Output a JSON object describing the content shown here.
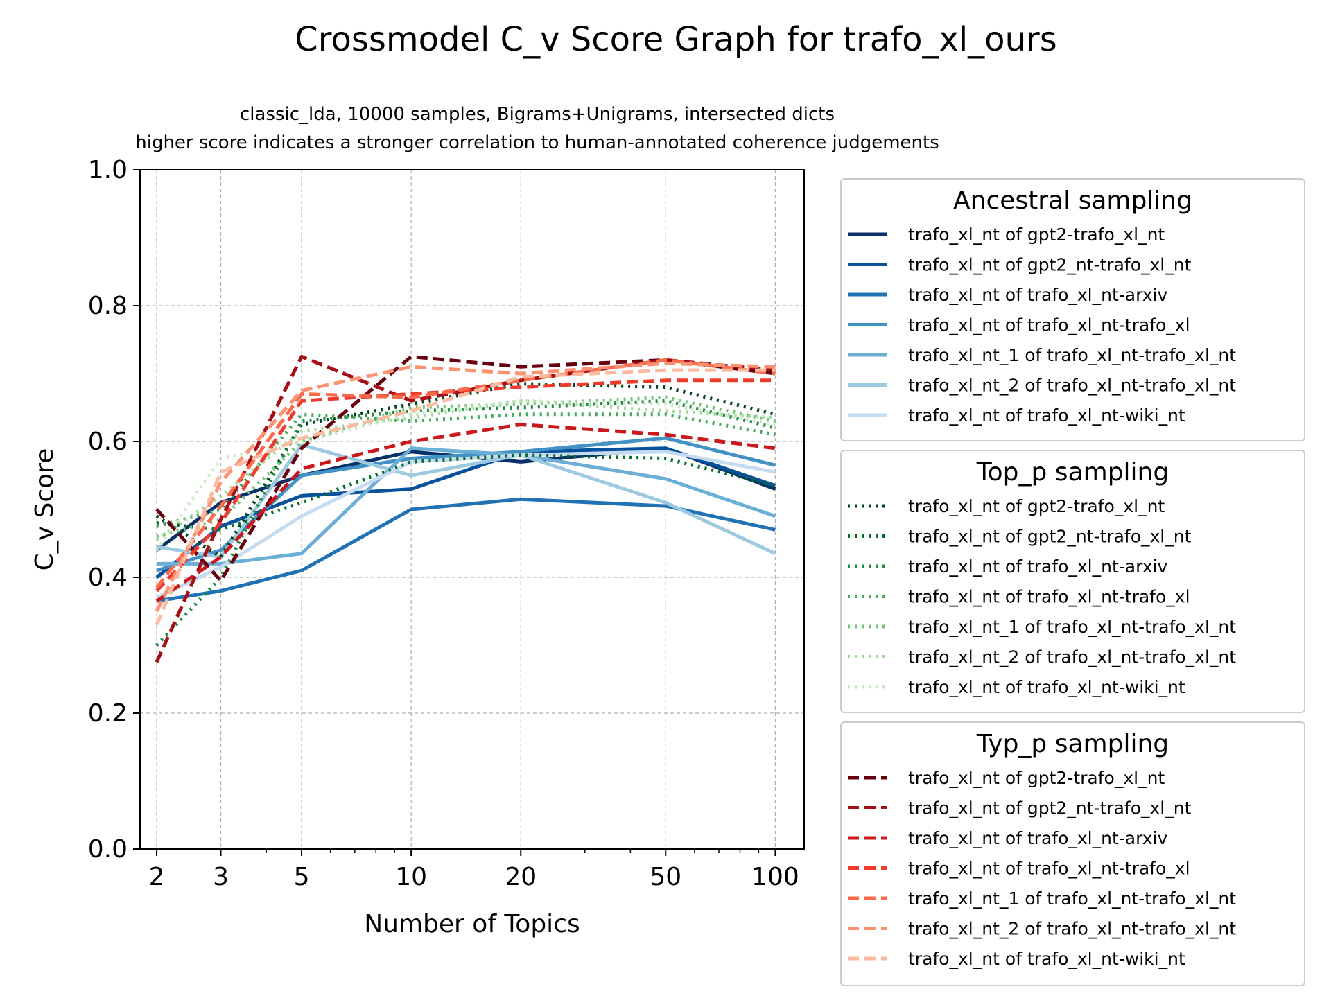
{
  "chart_data": {
    "type": "line",
    "title": "Crossmodel C_v Score Graph for trafo_xl_ours",
    "subtitle_line1": "classic_lda, 10000 samples, Bigrams+Unigrams, intersected dicts",
    "subtitle_line2": "higher score indicates a stronger correlation to human-annotated coherence judgements",
    "xlabel": "Number of Topics",
    "ylabel": "C_v Score",
    "x_scale": "log",
    "xlim": [
      1.8,
      120
    ],
    "ylim": [
      0,
      1
    ],
    "x": [
      2,
      3,
      5,
      10,
      20,
      50,
      100
    ],
    "x_tick_labels": [
      "2",
      "3",
      "5",
      "10",
      "20",
      "50",
      "100"
    ],
    "y_ticks": [
      0.0,
      0.2,
      0.4,
      0.6,
      0.8,
      1.0
    ],
    "y_tick_labels": [
      "0.0",
      "0.2",
      "0.4",
      "0.6",
      "0.8",
      "1.0"
    ],
    "grid": true,
    "legend_placement": "right, outside plot",
    "groups": [
      {
        "title": "Ancestral sampling",
        "style": "solid",
        "series": [
          {
            "name": "trafo_xl_nt of gpt2-trafo_xl_nt",
            "color": "#08306b",
            "values": [
              0.44,
              0.51,
              0.55,
              0.585,
              0.57,
              0.59,
              0.53
            ]
          },
          {
            "name": "trafo_xl_nt of gpt2_nt-trafo_xl_nt",
            "color": "#08519c",
            "values": [
              0.4,
              0.475,
              0.52,
              0.53,
              0.585,
              0.59,
              0.535
            ]
          },
          {
            "name": "trafo_xl_nt of trafo_xl_nt-arxiv",
            "color": "#2171b5",
            "values": [
              0.365,
              0.38,
              0.41,
              0.5,
              0.515,
              0.505,
              0.47
            ]
          },
          {
            "name": "trafo_xl_nt of trafo_xl_nt-trafo_xl",
            "color": "#4292c6",
            "values": [
              0.41,
              0.44,
              0.55,
              0.575,
              0.585,
              0.605,
              0.565
            ]
          },
          {
            "name": "trafo_xl_nt_1 of trafo_xl_nt-trafo_xl_nt",
            "color": "#6baed6",
            "values": [
              0.42,
              0.42,
              0.435,
              0.59,
              0.58,
              0.545,
              0.49
            ]
          },
          {
            "name": "trafo_xl_nt_2 of trafo_xl_nt-trafo_xl_nt",
            "color": "#9ecae1",
            "values": [
              0.445,
              0.43,
              0.595,
              0.55,
              0.58,
              0.51,
              0.435
            ]
          },
          {
            "name": "trafo_xl_nt of trafo_xl_nt-wiki_nt",
            "color": "#c6dbef",
            "values": [
              0.37,
              0.415,
              0.49,
              0.57,
              0.58,
              0.585,
              0.555
            ]
          }
        ]
      },
      {
        "title": "Top_p sampling",
        "style": "dotted",
        "series": [
          {
            "name": "trafo_xl_nt of gpt2-trafo_xl_nt",
            "color": "#00441b",
            "values": [
              0.49,
              0.43,
              0.625,
              0.655,
              0.685,
              0.68,
              0.64
            ]
          },
          {
            "name": "trafo_xl_nt of gpt2_nt-trafo_xl_nt",
            "color": "#006d2c",
            "values": [
              0.48,
              0.47,
              0.51,
              0.57,
              0.58,
              0.575,
              0.535
            ]
          },
          {
            "name": "trafo_xl_nt of trafo_xl_nt-arxiv",
            "color": "#238b45",
            "values": [
              0.3,
              0.4,
              0.63,
              0.645,
              0.65,
              0.66,
              0.62
            ]
          },
          {
            "name": "trafo_xl_nt of trafo_xl_nt-trafo_xl",
            "color": "#41ab5d",
            "values": [
              0.475,
              0.5,
              0.64,
              0.63,
              0.64,
              0.64,
              0.61
            ]
          },
          {
            "name": "trafo_xl_nt_1 of trafo_xl_nt-trafo_xl_nt",
            "color": "#74c476",
            "values": [
              0.46,
              0.485,
              0.6,
              0.65,
              0.655,
              0.665,
              0.63
            ]
          },
          {
            "name": "trafo_xl_nt_2 of trafo_xl_nt-trafo_xl_nt",
            "color": "#a1d99b",
            "values": [
              0.455,
              0.52,
              0.615,
              0.635,
              0.66,
              0.645,
              0.635
            ]
          },
          {
            "name": "trafo_xl_nt of trafo_xl_nt-wiki_nt",
            "color": "#c7e9c0",
            "values": [
              0.44,
              0.575,
              0.6,
              0.64,
              0.66,
              0.655,
              0.625
            ]
          }
        ]
      },
      {
        "title": "Typ_p sampling",
        "style": "dashed",
        "series": [
          {
            "name": "trafo_xl_nt of gpt2-trafo_xl_nt",
            "color": "#67000d",
            "values": [
              0.5,
              0.395,
              0.59,
              0.725,
              0.71,
              0.72,
              0.7
            ]
          },
          {
            "name": "trafo_xl_nt of gpt2_nt-trafo_xl_nt",
            "color": "#a50f15",
            "values": [
              0.275,
              0.485,
              0.725,
              0.66,
              0.69,
              0.72,
              0.705
            ]
          },
          {
            "name": "trafo_xl_nt of trafo_xl_nt-arxiv",
            "color": "#cb181d",
            "values": [
              0.365,
              0.43,
              0.56,
              0.6,
              0.625,
              0.61,
              0.59
            ]
          },
          {
            "name": "trafo_xl_nt of trafo_xl_nt-trafo_xl",
            "color": "#ef3b2c",
            "values": [
              0.38,
              0.48,
              0.66,
              0.67,
              0.68,
              0.69,
              0.69
            ]
          },
          {
            "name": "trafo_xl_nt_1 of trafo_xl_nt-trafo_xl_nt",
            "color": "#fb6a4a",
            "values": [
              0.385,
              0.505,
              0.67,
              0.665,
              0.69,
              0.72,
              0.7
            ]
          },
          {
            "name": "trafo_xl_nt_2 of trafo_xl_nt-trafo_xl_nt",
            "color": "#fc9272",
            "values": [
              0.35,
              0.54,
              0.675,
              0.71,
              0.7,
              0.715,
              0.71
            ]
          },
          {
            "name": "trafo_xl_nt of trafo_xl_nt-wiki_nt",
            "color": "#fcbba1",
            "values": [
              0.33,
              0.555,
              0.605,
              0.645,
              0.695,
              0.705,
              0.705
            ]
          }
        ]
      }
    ]
  }
}
